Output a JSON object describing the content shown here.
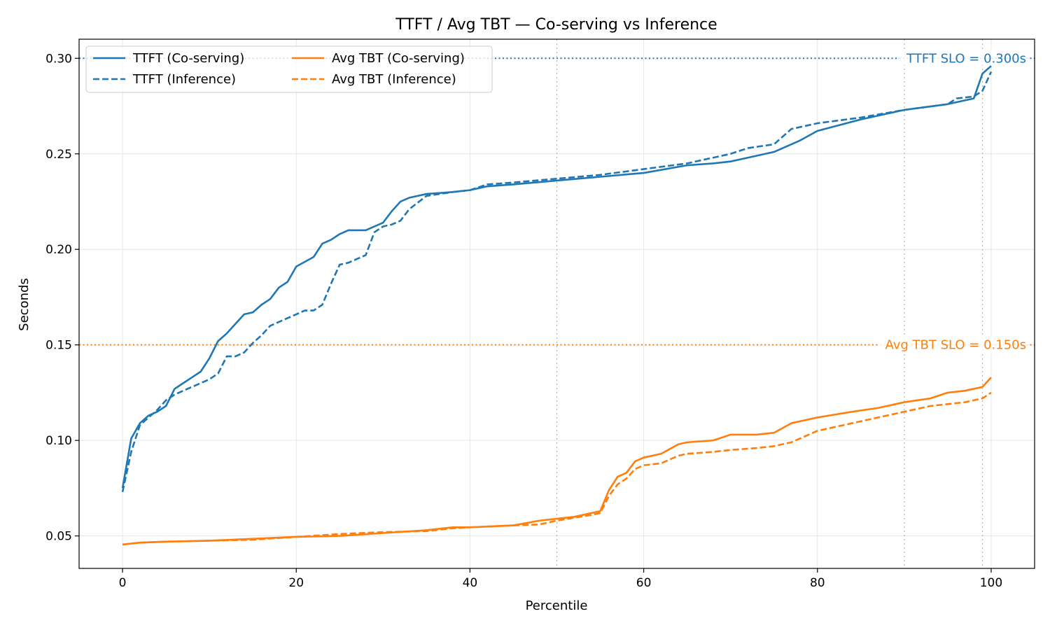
{
  "chart_data": {
    "type": "line",
    "title": "TTFT / Avg TBT — Co-serving vs Inference",
    "xlabel": "Percentile",
    "ylabel": "Seconds",
    "xlim": [
      -5,
      105
    ],
    "ylim": [
      0.033,
      0.31
    ],
    "xticks": [
      0,
      20,
      40,
      60,
      80,
      100
    ],
    "yticks": [
      0.05,
      0.1,
      0.15,
      0.2,
      0.25,
      0.3
    ],
    "ytick_labels": [
      "0.05",
      "0.10",
      "0.15",
      "0.20",
      "0.25",
      "0.30"
    ],
    "grid": true,
    "legend_position": "top-left",
    "percentile_markers": [
      50,
      90,
      99
    ],
    "slo_lines": [
      {
        "label": "TTFT SLO = 0.300s",
        "value": 0.3,
        "color": "#1f77b4"
      },
      {
        "label": "Avg TBT SLO = 0.150s",
        "value": 0.15,
        "color": "#ff7f0e"
      }
    ],
    "series": [
      {
        "name": "TTFT (Co-serving)",
        "color": "#1f77b4",
        "dash": "solid",
        "x": [
          0,
          1,
          2,
          3,
          4,
          5,
          6,
          7,
          8,
          9,
          10,
          11,
          12,
          13,
          14,
          15,
          16,
          17,
          18,
          19,
          20,
          22,
          23,
          24,
          25,
          26,
          28,
          30,
          31,
          32,
          33,
          35,
          38,
          40,
          42,
          45,
          50,
          55,
          60,
          65,
          68,
          70,
          72,
          75,
          78,
          80,
          85,
          90,
          95,
          98,
          99,
          100
        ],
        "y": [
          0.075,
          0.101,
          0.109,
          0.113,
          0.115,
          0.118,
          0.127,
          0.13,
          0.133,
          0.136,
          0.143,
          0.152,
          0.156,
          0.161,
          0.166,
          0.167,
          0.171,
          0.174,
          0.18,
          0.183,
          0.191,
          0.196,
          0.203,
          0.205,
          0.208,
          0.21,
          0.21,
          0.214,
          0.22,
          0.225,
          0.227,
          0.229,
          0.23,
          0.231,
          0.233,
          0.234,
          0.236,
          0.238,
          0.24,
          0.244,
          0.245,
          0.246,
          0.248,
          0.251,
          0.257,
          0.262,
          0.268,
          0.273,
          0.276,
          0.279,
          0.292,
          0.296
        ]
      },
      {
        "name": "TTFT (Inference)",
        "color": "#1f77b4",
        "dash": "dashed",
        "x": [
          0,
          1,
          2,
          3,
          4,
          5,
          6,
          7,
          8,
          9,
          10,
          11,
          12,
          13,
          14,
          15,
          16,
          17,
          18,
          19,
          20,
          21,
          22,
          23,
          24,
          25,
          26,
          27,
          28,
          29,
          30,
          31,
          32,
          33,
          35,
          38,
          40,
          42,
          45,
          50,
          55,
          60,
          65,
          68,
          70,
          72,
          75,
          77,
          80,
          85,
          90,
          95,
          96,
          98,
          99,
          100
        ],
        "y": [
          0.073,
          0.094,
          0.108,
          0.112,
          0.116,
          0.121,
          0.124,
          0.126,
          0.128,
          0.13,
          0.132,
          0.135,
          0.144,
          0.144,
          0.146,
          0.151,
          0.155,
          0.16,
          0.162,
          0.164,
          0.166,
          0.168,
          0.168,
          0.171,
          0.182,
          0.192,
          0.193,
          0.195,
          0.197,
          0.209,
          0.212,
          0.213,
          0.215,
          0.221,
          0.228,
          0.23,
          0.231,
          0.234,
          0.235,
          0.237,
          0.239,
          0.242,
          0.245,
          0.248,
          0.25,
          0.253,
          0.255,
          0.263,
          0.266,
          0.269,
          0.273,
          0.276,
          0.279,
          0.28,
          0.283,
          0.293
        ]
      },
      {
        "name": "Avg TBT (Co-serving)",
        "color": "#ff7f0e",
        "dash": "solid",
        "x": [
          0,
          2,
          5,
          10,
          15,
          20,
          25,
          30,
          35,
          38,
          40,
          45,
          48,
          50,
          52,
          54,
          55,
          56,
          57,
          58,
          59,
          60,
          62,
          64,
          65,
          68,
          70,
          73,
          75,
          77,
          80,
          84,
          87,
          90,
          93,
          95,
          97,
          98,
          99,
          100
        ],
        "y": [
          0.0455,
          0.0465,
          0.047,
          0.0475,
          0.0485,
          0.0495,
          0.05,
          0.0515,
          0.053,
          0.0545,
          0.0545,
          0.0555,
          0.058,
          0.059,
          0.06,
          0.062,
          0.063,
          0.074,
          0.081,
          0.083,
          0.089,
          0.091,
          0.093,
          0.098,
          0.099,
          0.1,
          0.103,
          0.103,
          0.104,
          0.109,
          0.112,
          0.115,
          0.117,
          0.12,
          0.122,
          0.125,
          0.126,
          0.127,
          0.128,
          0.133
        ]
      },
      {
        "name": "Avg TBT (Inference)",
        "color": "#ff7f0e",
        "dash": "dashed",
        "x": [
          0,
          2,
          5,
          10,
          15,
          20,
          25,
          30,
          35,
          38,
          40,
          45,
          48,
          50,
          52,
          54,
          55,
          56,
          57,
          58,
          59,
          60,
          62,
          64,
          65,
          68,
          70,
          73,
          75,
          77,
          80,
          84,
          87,
          90,
          93,
          95,
          97,
          98,
          99,
          100
        ],
        "y": [
          0.0455,
          0.0465,
          0.047,
          0.0475,
          0.048,
          0.0495,
          0.051,
          0.052,
          0.0525,
          0.054,
          0.0545,
          0.0555,
          0.056,
          0.058,
          0.0595,
          0.061,
          0.062,
          0.071,
          0.077,
          0.08,
          0.085,
          0.087,
          0.088,
          0.092,
          0.093,
          0.094,
          0.095,
          0.096,
          0.097,
          0.099,
          0.105,
          0.109,
          0.112,
          0.115,
          0.118,
          0.119,
          0.12,
          0.121,
          0.122,
          0.125
        ]
      }
    ]
  }
}
